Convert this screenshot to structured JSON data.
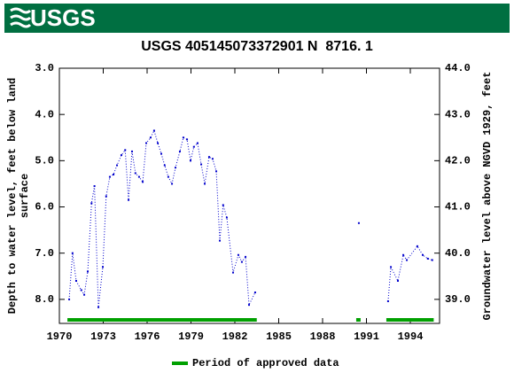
{
  "header": {
    "logo_text": "USGS"
  },
  "chart_data": {
    "type": "line",
    "title": "USGS 405145073372901 N  8716. 1",
    "ylabel": [
      "Depth to water level, feet below land",
      "surface"
    ],
    "y2label": "Groundwater level above NGVD 1929, feet",
    "xlim": [
      1970,
      1996
    ],
    "xticks": [
      1970,
      1973,
      1976,
      1979,
      1982,
      1985,
      1988,
      1991,
      1994
    ],
    "ylim": [
      3.0,
      8.52
    ],
    "invert_y": true,
    "yticks": [
      {
        "value": 3,
        "label": "3.0"
      },
      {
        "value": 4,
        "label": "4.0"
      },
      {
        "value": 5,
        "label": "5.0"
      },
      {
        "value": 6,
        "label": "6.0"
      },
      {
        "value": 7,
        "label": "7.0"
      },
      {
        "value": 8,
        "label": "8.0"
      }
    ],
    "y2lim": [
      38.48,
      44.0
    ],
    "y2ticks": [
      {
        "value": 39,
        "label": "39.0"
      },
      {
        "value": 40,
        "label": "40.0"
      },
      {
        "value": 41,
        "label": "41.0"
      },
      {
        "value": 42,
        "label": "42.0"
      },
      {
        "value": 43,
        "label": "43.0"
      },
      {
        "value": 44,
        "label": "44.0"
      }
    ],
    "series": [
      {
        "color": "#0000cc",
        "x": [
          1970.67,
          1970.9,
          1971.15,
          1971.5,
          1971.7,
          1971.94,
          1972.2,
          1972.4,
          1972.67,
          1972.97,
          1973.2,
          1973.45,
          1973.7,
          1973.94,
          1974.24,
          1974.5,
          1974.73,
          1974.97,
          1975.2,
          1975.45,
          1975.7,
          1975.94,
          1976.24,
          1976.48,
          1976.73,
          1976.97,
          1977.2,
          1977.45,
          1977.7,
          1977.94,
          1978.24,
          1978.48,
          1978.73,
          1978.97,
          1979.2,
          1979.45,
          1979.7,
          1979.94,
          1980.24,
          1980.48,
          1980.73,
          1980.97,
          1981.2,
          1981.45,
          1981.88,
          1982.24,
          1982.48,
          1982.73,
          1982.97,
          1983.39,
          null,
          1990.48,
          null,
          1992.48,
          1992.67,
          1993.15,
          1993.52,
          1993.76,
          1994.48,
          1994.85,
          1995.2,
          1995.5
        ],
        "values": [
          8.0,
          7.0,
          7.6,
          7.8,
          7.9,
          7.4,
          5.92,
          5.55,
          8.17,
          7.3,
          5.77,
          5.35,
          5.3,
          5.1,
          4.88,
          4.77,
          5.85,
          4.8,
          5.27,
          5.35,
          5.46,
          4.62,
          4.5,
          4.35,
          4.62,
          4.85,
          5.1,
          5.35,
          5.5,
          5.15,
          4.8,
          4.5,
          4.54,
          5.0,
          4.7,
          4.62,
          5.08,
          5.5,
          4.92,
          4.96,
          5.23,
          6.73,
          5.96,
          6.23,
          7.42,
          7.04,
          7.19,
          7.08,
          8.12,
          7.85,
          null,
          6.35,
          null,
          8.04,
          7.3,
          7.6,
          7.04,
          7.15,
          6.85,
          7.04,
          7.12,
          7.15
        ]
      }
    ],
    "approved_periods": [
      [
        1970.55,
        1983.5
      ],
      [
        1990.3,
        1990.6
      ],
      [
        1992.36,
        1995.6
      ]
    ],
    "approved_color": "#00a000",
    "legend": "Period of approved data"
  }
}
